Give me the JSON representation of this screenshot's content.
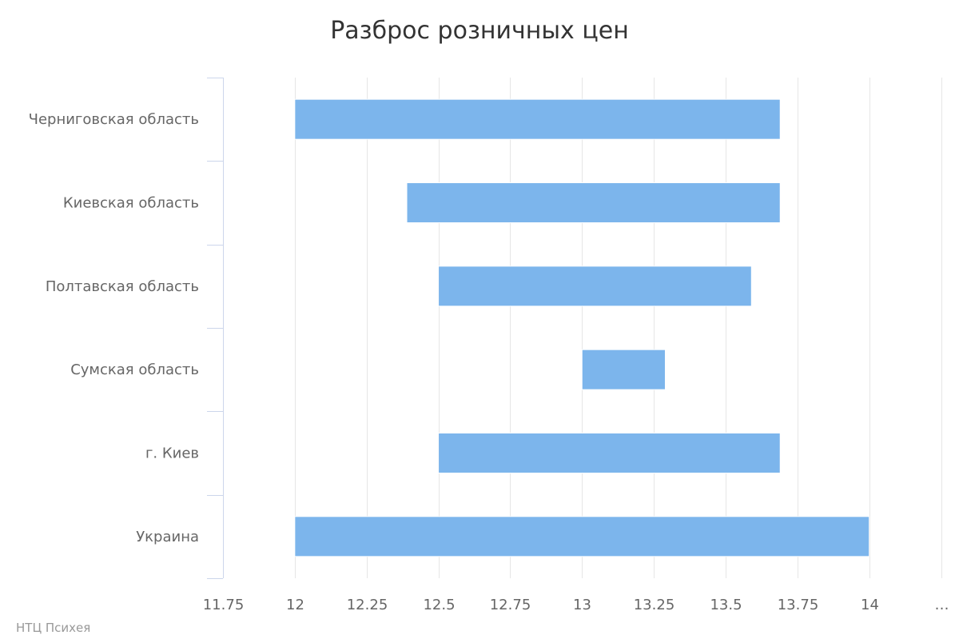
{
  "chart_data": {
    "type": "bar",
    "orientation": "horizontal",
    "subtype": "range",
    "title": "Разброс розничных цен",
    "categories": [
      "Черниговская область",
      "Киевская область",
      "Полтавская область",
      "Сумская область",
      "г. Киев",
      "Украина"
    ],
    "series": [
      {
        "low": [
          12.0,
          12.39,
          12.5,
          13.0,
          12.5,
          12.0
        ],
        "high": [
          13.69,
          13.69,
          13.59,
          13.29,
          13.69,
          14.0
        ]
      }
    ],
    "xlim": [
      11.75,
      14.25
    ],
    "xticks": [
      "11.75",
      "12",
      "12.25",
      "12.5",
      "12.75",
      "13",
      "13.25",
      "13.5",
      "13.75",
      "14",
      "…"
    ],
    "xtick_values": [
      11.75,
      12,
      12.25,
      12.5,
      12.75,
      13,
      13.25,
      13.5,
      13.75,
      14,
      14.25
    ],
    "grid": true,
    "legend": "none",
    "colors": {
      "bar": "#7cb5ec",
      "grid": "#e6e6e6",
      "axis": "#ccd6eb",
      "text": "#666666",
      "title": "#333333"
    }
  },
  "credits": "НТЦ Психея"
}
